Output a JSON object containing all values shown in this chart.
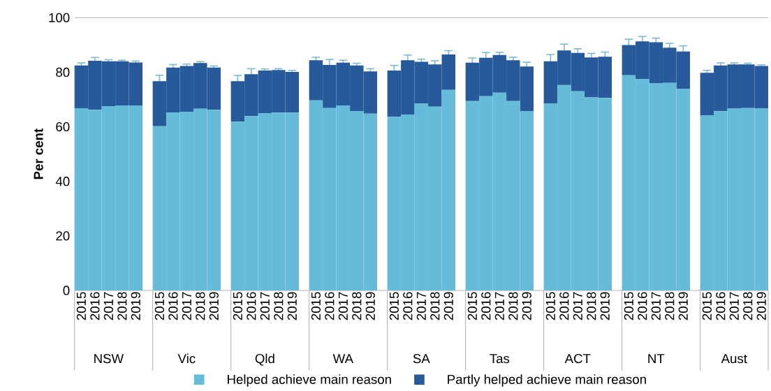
{
  "chart_data": {
    "type": "bar",
    "stacked": true,
    "ylabel": "Per cent",
    "categories": [
      "2015",
      "2016",
      "2017",
      "2018",
      "2019",
      "2015",
      "2016",
      "2017",
      "2018",
      "2019",
      "2015",
      "2016",
      "2017",
      "2018",
      "2019",
      "2015",
      "2016",
      "2017",
      "2018",
      "2019",
      "2015",
      "2016",
      "2017",
      "2018",
      "2019",
      "2015",
      "2016",
      "2017",
      "2018",
      "2019",
      "2015",
      "2016",
      "2017",
      "2018",
      "2019",
      "2015",
      "2016",
      "2017",
      "2018",
      "2019",
      "2015",
      "2016",
      "2017",
      "2018",
      "2019"
    ],
    "annotations": [
      "NSW",
      "Vic",
      "Qld",
      "WA",
      "SA",
      "Tas",
      "ACT",
      "NT",
      "Aust"
    ],
    "series": [
      {
        "name": "Helped achieve main reason",
        "color": "#65bbda",
        "values": [
          66.8,
          66.2,
          67.6,
          67.8,
          67.8,
          60.2,
          65.3,
          65.5,
          66.6,
          66.2,
          61.9,
          63.9,
          64.9,
          65.2,
          65.2,
          69.7,
          66.9,
          67.8,
          65.8,
          64.8,
          63.7,
          64.5,
          68.5,
          67.4,
          73.5,
          69.4,
          71.2,
          72.5,
          69.4,
          65.8,
          68.5,
          75.3,
          73.0,
          70.8,
          70.6,
          78.9,
          77.4,
          76.0,
          76.1,
          74.0,
          64.1,
          65.7,
          66.7,
          66.9,
          66.8
        ]
      },
      {
        "name": "Partly helped achieve main reason",
        "color": "#265a9a",
        "values": [
          15.7,
          18.0,
          16.4,
          16.2,
          15.8,
          16.5,
          16.4,
          16.8,
          16.8,
          15.5,
          14.8,
          15.4,
          15.7,
          15.6,
          14.9,
          14.7,
          15.8,
          15.7,
          16.7,
          15.5,
          16.9,
          19.9,
          15.3,
          15.5,
          13.0,
          14.1,
          14.1,
          13.8,
          15.0,
          16.3,
          15.5,
          12.7,
          14.1,
          14.6,
          15.1,
          11.1,
          13.9,
          15.0,
          12.9,
          13.6,
          15.7,
          16.8,
          16.2,
          16.0,
          15.5
        ],
        "errors": [
          0.9,
          1.2,
          0.6,
          0.4,
          0.5,
          2.2,
          1.1,
          0.7,
          0.5,
          0.6,
          2.1,
          2.0,
          0.6,
          0.5,
          0.6,
          1.1,
          2.0,
          0.9,
          0.8,
          1.0,
          1.9,
          1.9,
          1.0,
          1.3,
          1.4,
          1.7,
          1.9,
          1.0,
          1.1,
          1.6,
          2.5,
          2.3,
          1.5,
          1.5,
          1.7,
          2.1,
          1.8,
          1.5,
          1.6,
          2.1,
          0.9,
          0.9,
          0.5,
          0.4,
          0.4
        ]
      }
    ],
    "ylim": [
      0,
      100
    ],
    "yticks": [
      0,
      20,
      40,
      60,
      80,
      100
    ],
    "grid": false,
    "legend": "bottom"
  }
}
